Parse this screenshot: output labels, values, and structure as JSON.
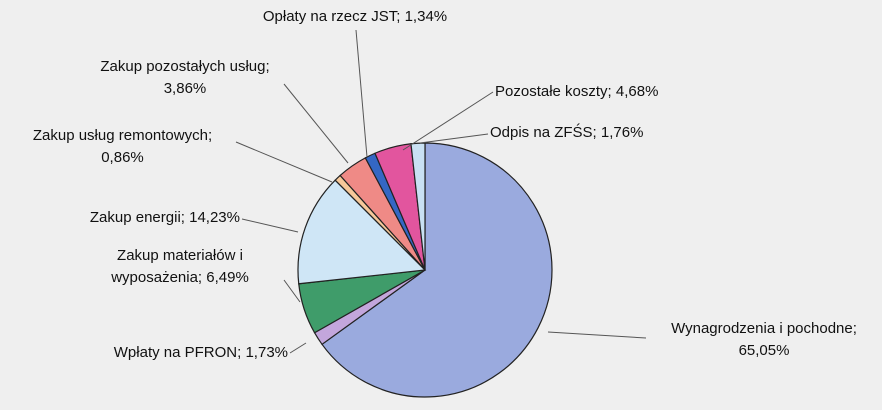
{
  "chart_data": {
    "type": "pie",
    "labels": [
      "Wynagrodzenia i pochodne; 65,05%",
      "Wpłaty na PFRON; 1,73%",
      "Zakup materiałów i wyposażenia; 6,49%",
      "Zakup energii; 14,23%",
      "Zakup usług remontowych; 0,86%",
      "Zakup pozostałych usług; 3,86%",
      "Opłaty na rzecz JST; 1,34%",
      "Pozostałe koszty; 4,68%",
      "Odpis na ZFŚS; 1,76%"
    ],
    "values": [
      65.05,
      1.73,
      6.49,
      14.23,
      0.86,
      3.86,
      1.34,
      4.68,
      1.76
    ],
    "colors": [
      "#9aaade",
      "#c3a6dc",
      "#3f9c6a",
      "#cfe6f6",
      "#f6c89a",
      "#ef8a86",
      "#3467c4",
      "#e2559e",
      "#c9e1f3"
    ]
  }
}
